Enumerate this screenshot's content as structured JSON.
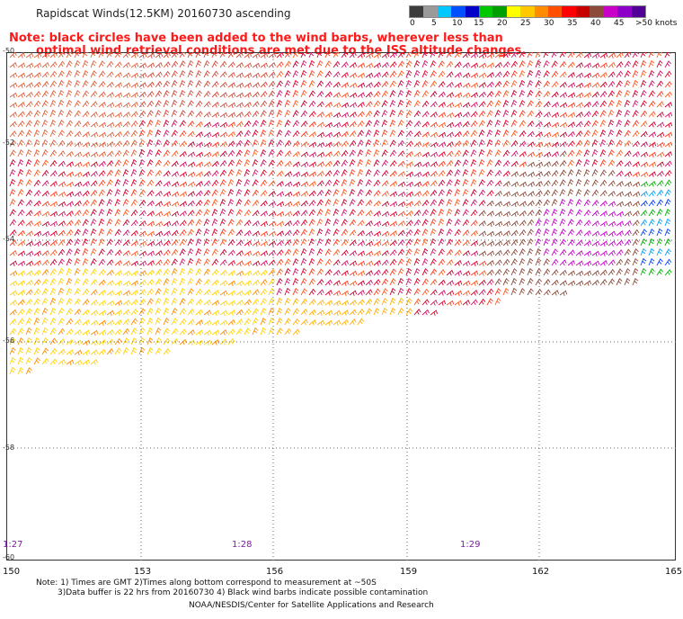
{
  "title": "Rapidscat Winds(12.5KM) 20160730 ascending",
  "note_line1": "Note: black circles have been added to the wind barbs, wherever less than",
  "note_line2": "optimal wind retrieval conditions are met due to the ISS altitude changes.",
  "legend": {
    "colors": [
      "#3c3c3c",
      "#9a9a9a",
      "#00c8ff",
      "#0050ff",
      "#0000c8",
      "#00c800",
      "#00a000",
      "#ffff00",
      "#ffc800",
      "#ff8c00",
      "#ff5000",
      "#ff0000",
      "#c80000",
      "#8b4a3a",
      "#c800c8",
      "#8c00c8",
      "#500096"
    ],
    "tick_labels": [
      "0",
      "5",
      "10",
      "15",
      "20",
      "25",
      "30",
      "35",
      "40",
      "45",
      ">50 knots"
    ]
  },
  "x_axis_labels": [
    "150",
    "153",
    "156",
    "159",
    "162",
    "165"
  ],
  "y_axis_labels": [
    "-50",
    "-52",
    "-54",
    "-56",
    "-58",
    "-60"
  ],
  "time_labels": [
    "1:27",
    "1:28",
    "1:29"
  ],
  "footnote_line1": "Note: 1) Times are GMT 2)Times along bottom correspond to measurement at ~50S",
  "footnote_line2": "3)Data buffer is 22 hrs from 20160730 4) Black wind barbs indicate possible contamination",
  "credit": "NOAA/NESDIS/Center for Satellite Applications and Research"
}
